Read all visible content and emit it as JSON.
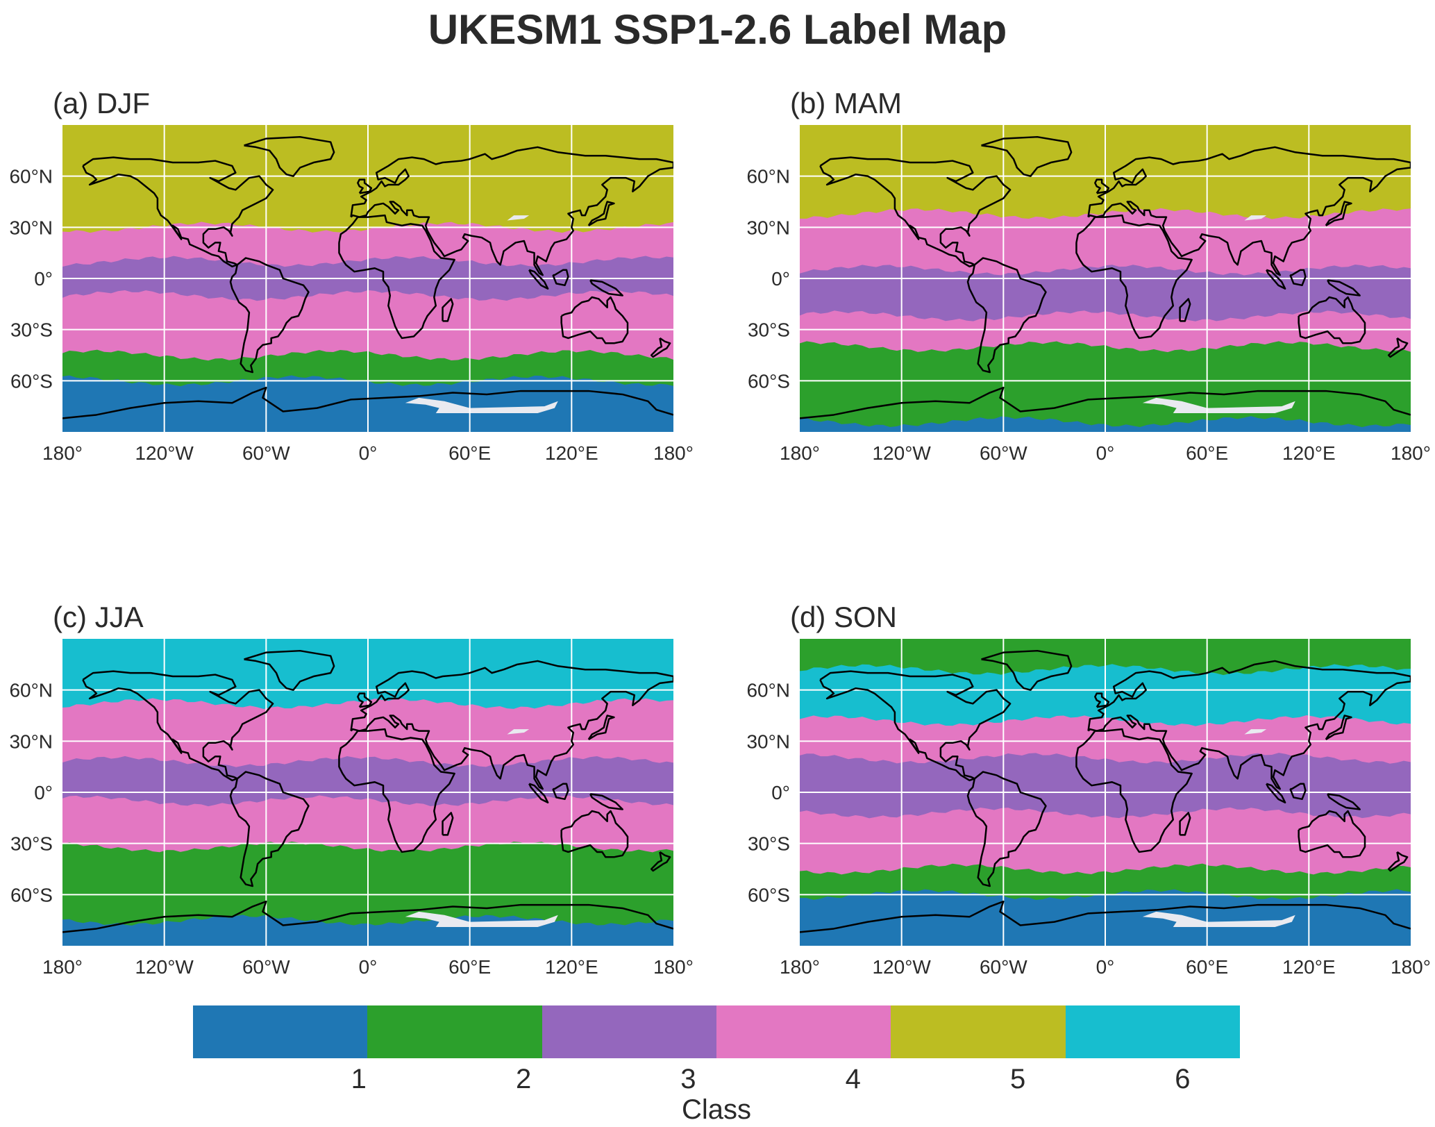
{
  "title": "UKESM1 SSP1-2.6 Label Map",
  "class_colors": {
    "1": "#1f77b4",
    "2": "#2ca02c",
    "3": "#9467bd",
    "4": "#e377c2",
    "5": "#bcbd22",
    "6": "#17becf"
  },
  "ice_color": "#e9eaf0",
  "coast_color": "#000000",
  "grid_color": "#ffffff",
  "x_ticks": [
    "180°",
    "120°W",
    "60°W",
    "0°",
    "60°E",
    "120°E",
    "180°"
  ],
  "y_ticks": [
    "60°N",
    "30°N",
    "0°",
    "30°S",
    "60°S"
  ],
  "panels": [
    {
      "title": "(a) DJF",
      "bands": [
        {
          "lat_top": 90,
          "lat_bottom": 30,
          "class": 5
        },
        {
          "lat_top": 30,
          "lat_bottom": 10,
          "class": 4
        },
        {
          "lat_top": 10,
          "lat_bottom": -10,
          "class": 3
        },
        {
          "lat_top": -10,
          "lat_bottom": -45,
          "class": 4
        },
        {
          "lat_top": -45,
          "lat_bottom": -60,
          "class": 2
        },
        {
          "lat_top": -60,
          "lat_bottom": -90,
          "class": 1
        }
      ]
    },
    {
      "title": "(b) MAM",
      "bands": [
        {
          "lat_top": 90,
          "lat_bottom": 38,
          "class": 5
        },
        {
          "lat_top": 38,
          "lat_bottom": 5,
          "class": 4
        },
        {
          "lat_top": 5,
          "lat_bottom": -22,
          "class": 3
        },
        {
          "lat_top": -22,
          "lat_bottom": -40,
          "class": 4
        },
        {
          "lat_top": -40,
          "lat_bottom": -84,
          "class": 2
        },
        {
          "lat_top": -84,
          "lat_bottom": -90,
          "class": 1
        }
      ]
    },
    {
      "title": "(c) JJA",
      "bands": [
        {
          "lat_top": 90,
          "lat_bottom": 52,
          "class": 6
        },
        {
          "lat_top": 52,
          "lat_bottom": 18,
          "class": 4
        },
        {
          "lat_top": 18,
          "lat_bottom": -5,
          "class": 3
        },
        {
          "lat_top": -5,
          "lat_bottom": -32,
          "class": 4
        },
        {
          "lat_top": -32,
          "lat_bottom": -75,
          "class": 2
        },
        {
          "lat_top": -75,
          "lat_bottom": -90,
          "class": 1
        }
      ]
    },
    {
      "title": "(d) SON",
      "bands": [
        {
          "lat_top": 90,
          "lat_bottom": 72,
          "class": 2
        },
        {
          "lat_top": 72,
          "lat_bottom": 42,
          "class": 6
        },
        {
          "lat_top": 42,
          "lat_bottom": 20,
          "class": 4
        },
        {
          "lat_top": 20,
          "lat_bottom": -12,
          "class": 3
        },
        {
          "lat_top": -12,
          "lat_bottom": -45,
          "class": 4
        },
        {
          "lat_top": -45,
          "lat_bottom": -60,
          "class": 2
        },
        {
          "lat_top": -60,
          "lat_bottom": -90,
          "class": 1
        }
      ]
    }
  ],
  "colorbar": {
    "labels": [
      "1",
      "2",
      "3",
      "4",
      "5",
      "6"
    ],
    "title": "Class"
  }
}
